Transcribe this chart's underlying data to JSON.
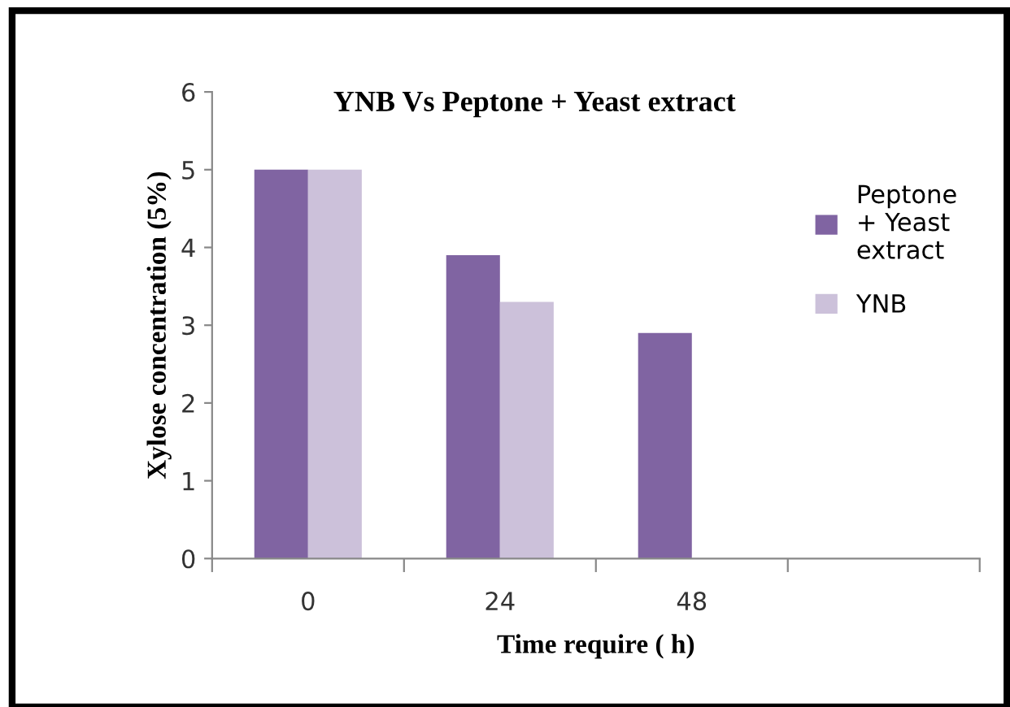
{
  "chart_data": {
    "type": "bar",
    "title": "YNB Vs Peptone + Yeast extract",
    "xlabel": "Time require ( h)",
    "ylabel": "Xylose concentration (5%)",
    "categories": [
      "0",
      "24",
      "48",
      null
    ],
    "series": [
      {
        "name": "Peptone + Yeast extract",
        "color": "#8064a2",
        "values": [
          5,
          3.9,
          2.9,
          null
        ]
      },
      {
        "name": "YNB",
        "color": "#ccc1da",
        "values": [
          5,
          3.3,
          null,
          null
        ]
      }
    ],
    "ylim": [
      0,
      6
    ],
    "yticks": [
      0,
      1,
      2,
      3,
      4,
      5,
      6
    ],
    "grid": false,
    "legend": "right"
  }
}
